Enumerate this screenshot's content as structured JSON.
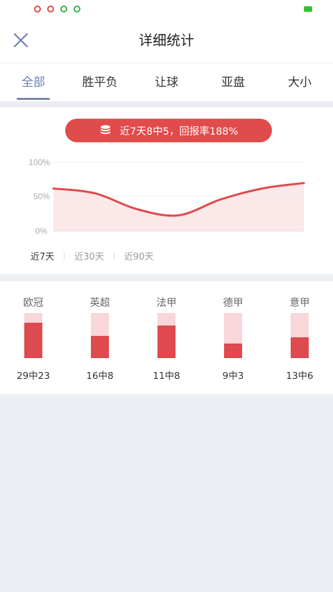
{
  "statusbar": {
    "icons": [
      {
        "name": "notification-red-icon",
        "color": "#e04b4b"
      },
      {
        "name": "notification-red-icon",
        "color": "#e04b4b"
      },
      {
        "name": "notification-green-icon",
        "color": "#36b24a"
      },
      {
        "name": "notification-green-icon",
        "color": "#36b24a"
      }
    ],
    "battery_color": "#2ec42e"
  },
  "header": {
    "title": "详细统计",
    "close_icon": "close-icon"
  },
  "tabs": [
    {
      "label": "全部",
      "active": true
    },
    {
      "label": "胜平负",
      "active": false
    },
    {
      "label": "让球",
      "active": false
    },
    {
      "label": "亚盘",
      "active": false
    },
    {
      "label": "大小",
      "active": false
    }
  ],
  "summary": {
    "icon": "coin-stack-icon",
    "text": "近7天8中5，回报率188%"
  },
  "chart_data": {
    "type": "area",
    "x": [
      0,
      1,
      2,
      3,
      4,
      5,
      6
    ],
    "values": [
      62,
      55,
      32,
      23,
      46,
      62,
      70
    ],
    "yticks": [
      "100%",
      "50%",
      "0%"
    ],
    "ylim": [
      0,
      100
    ],
    "line_color": "#de4a4d",
    "fill_color": "#fbe8e9"
  },
  "range_tabs": [
    {
      "label": "近7天",
      "active": true
    },
    {
      "label": "近30天",
      "active": false
    },
    {
      "label": "近90天",
      "active": false
    }
  ],
  "leagues": [
    {
      "name": "欧冠",
      "record": "29中23",
      "ratio": 0.79
    },
    {
      "name": "英超",
      "record": "16中8",
      "ratio": 0.5
    },
    {
      "name": "法甲",
      "record": "11中8",
      "ratio": 0.73
    },
    {
      "name": "德甲",
      "record": "9中3",
      "ratio": 0.33
    },
    {
      "name": "意甲",
      "record": "13中6",
      "ratio": 0.46
    }
  ]
}
